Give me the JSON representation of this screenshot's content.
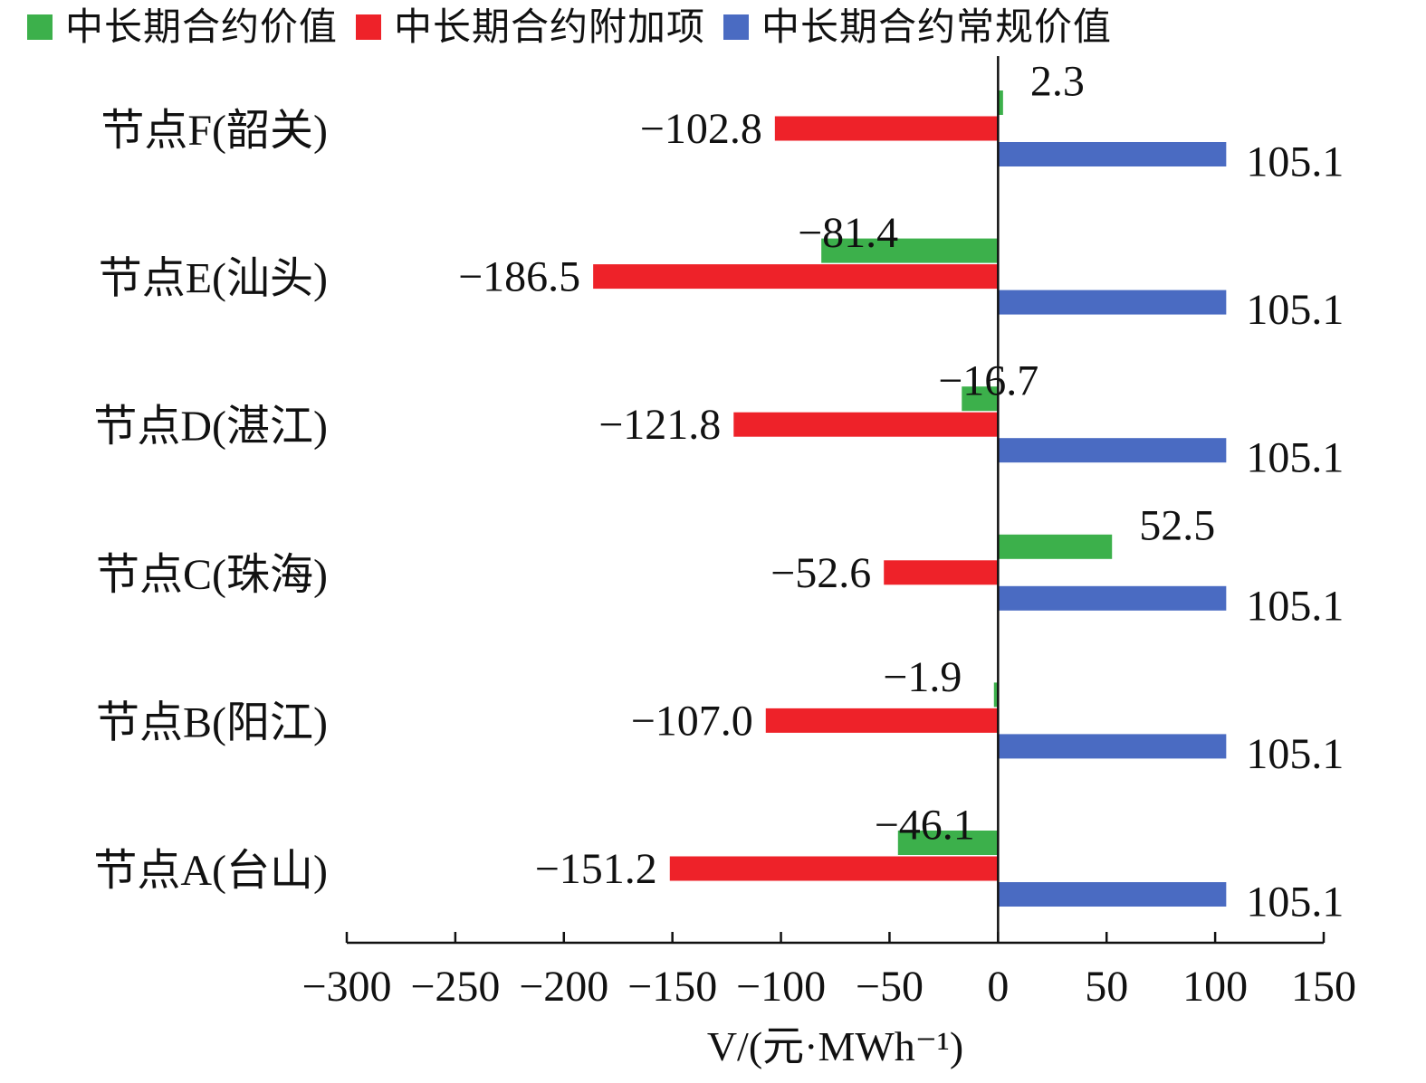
{
  "chart_data": {
    "type": "bar",
    "orientation": "horizontal",
    "categories": [
      "节点A(台山)",
      "节点B(阳江)",
      "节点C(珠海)",
      "节点D(湛江)",
      "节点E(汕头)",
      "节点F(韶关)"
    ],
    "series": [
      {
        "name": "中长期合约价值",
        "color": "#3cb04b",
        "values": [
          -46.1,
          -1.9,
          52.5,
          -16.7,
          -81.4,
          2.3
        ],
        "labels": [
          "−46.1",
          "−1.9",
          "52.5",
          "−16.7",
          "−81.4",
          "2.3"
        ]
      },
      {
        "name": "中长期合约附加项",
        "color": "#ee2229",
        "values": [
          -151.2,
          -107.0,
          -52.6,
          -121.8,
          -186.5,
          -102.8
        ],
        "labels": [
          "−151.2",
          "−107.0",
          "−52.6",
          "−121.8",
          "−186.5",
          "−102.8"
        ]
      },
      {
        "name": "中长期合约常规价值",
        "color": "#4a6bc2",
        "values": [
          105.1,
          105.1,
          105.1,
          105.1,
          105.1,
          105.1
        ],
        "labels": [
          "105.1",
          "105.1",
          "105.1",
          "105.1",
          "105.1",
          "105.1"
        ]
      }
    ],
    "xlim": [
      -300,
      150
    ],
    "xticks": [
      -300,
      -250,
      -200,
      -150,
      -100,
      -50,
      0,
      50,
      100,
      150
    ],
    "xtick_labels": [
      "−300",
      "−250",
      "−200",
      "−150",
      "−100",
      "−50",
      "0",
      "50",
      "100",
      "150"
    ],
    "xlabel": "V/(元·MWh⁻¹)",
    "legend_position": "top",
    "grid": false
  }
}
